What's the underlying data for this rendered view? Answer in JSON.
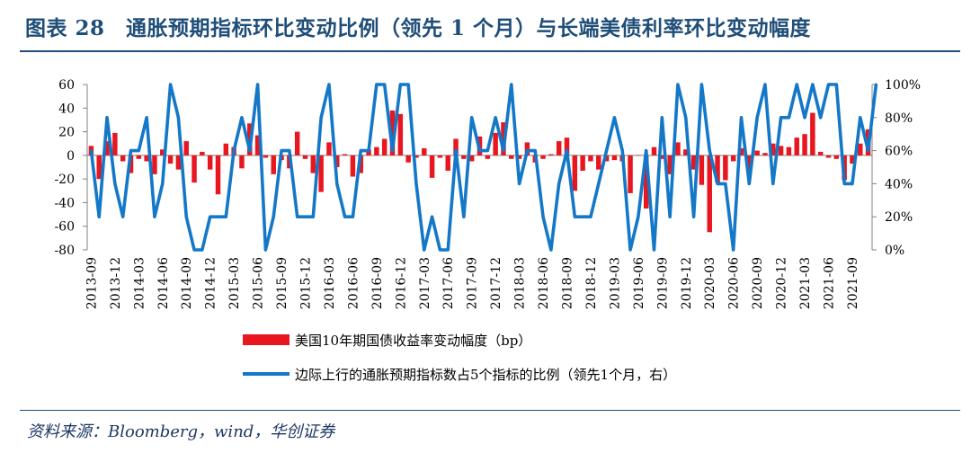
{
  "figure": {
    "title": "图表 28　通胀预期指标环比变动比例（领先 1 个月）与长端美债利率环比变动幅度",
    "source": "资料来源：Bloomberg，wind，华创证券"
  },
  "colors": {
    "bar": "#e8161e",
    "line": "#1478c8",
    "title": "#1f4e79",
    "axis": "#808080"
  },
  "chart_data": {
    "type": "bar",
    "title": "通胀预期指标环比变动比例（领先 1 个月）与长端美债利率环比变动幅度",
    "x_start": "2013-09",
    "x_tick_labels": [
      "2013-09",
      "2013-12",
      "2014-03",
      "2014-06",
      "2014-09",
      "2014-12",
      "2015-03",
      "2015-06",
      "2015-09",
      "2015-12",
      "2016-03",
      "2016-06",
      "2016-09",
      "2016-12",
      "2017-03",
      "2017-06",
      "2017-09",
      "2017-12",
      "2018-03",
      "2018-06",
      "2018-09",
      "2018-12",
      "2019-03",
      "2019-06",
      "2019-09",
      "2019-12",
      "2020-03",
      "2020-06",
      "2020-09",
      "2020-12",
      "2021-03",
      "2021-06",
      "2021-09"
    ],
    "y_left": {
      "min": -80,
      "max": 60,
      "ticks": [
        60,
        40,
        20,
        0,
        -20,
        -40,
        -60,
        -80
      ]
    },
    "y_right": {
      "min": 0,
      "max": 100,
      "ticks": [
        "100%",
        "80%",
        "60%",
        "40%",
        "20%",
        "0%"
      ]
    },
    "series": [
      {
        "name": "美国10年期国债收益率变动幅度（bp）",
        "type": "bar",
        "axis": "left",
        "values": [
          8,
          -20,
          12,
          19,
          -5,
          -15,
          -3,
          -5,
          -16,
          5,
          -7,
          -12,
          12,
          -23,
          3,
          -12,
          -33,
          10,
          7,
          -11,
          27,
          17,
          -2,
          -16,
          -4,
          -11,
          20,
          -3,
          -15,
          -31,
          11,
          -10,
          1,
          -18,
          -15,
          5,
          7,
          14,
          38,
          35,
          -6,
          -2,
          6,
          -19,
          -2,
          -13,
          14,
          -3,
          -5,
          16,
          -3,
          19,
          28,
          -3,
          -3,
          11,
          -6,
          -3,
          1,
          12,
          15,
          -30,
          -13,
          -5,
          -12,
          -5,
          -4,
          -5,
          -32,
          0,
          -45,
          7,
          -3,
          -16,
          11,
          5,
          -12,
          -25,
          -65,
          -23,
          -21,
          -5,
          6,
          -12,
          4,
          2,
          10,
          8,
          7,
          15,
          18,
          36,
          3,
          -2,
          -3,
          -21,
          -7,
          10,
          22
        ]
      },
      {
        "name": "边际上行的通胀预期指标数占5个指标的比例（领先1个月，右）",
        "type": "line",
        "axis": "right",
        "values": [
          60,
          20,
          80,
          40,
          20,
          60,
          60,
          80,
          20,
          40,
          100,
          80,
          20,
          0,
          0,
          20,
          20,
          20,
          60,
          80,
          60,
          100,
          0,
          20,
          60,
          60,
          20,
          20,
          20,
          80,
          100,
          40,
          20,
          20,
          60,
          60,
          100,
          100,
          60,
          100,
          100,
          40,
          0,
          20,
          0,
          0,
          60,
          20,
          80,
          60,
          60,
          80,
          60,
          100,
          40,
          60,
          60,
          20,
          0,
          40,
          60,
          20,
          20,
          20,
          40,
          60,
          80,
          60,
          0,
          20,
          60,
          0,
          80,
          20,
          100,
          80,
          20,
          100,
          60,
          40,
          40,
          0,
          80,
          40,
          80,
          100,
          40,
          80,
          80,
          100,
          80,
          100,
          80,
          100,
          100,
          40,
          40,
          80,
          60,
          100
        ]
      }
    ]
  }
}
